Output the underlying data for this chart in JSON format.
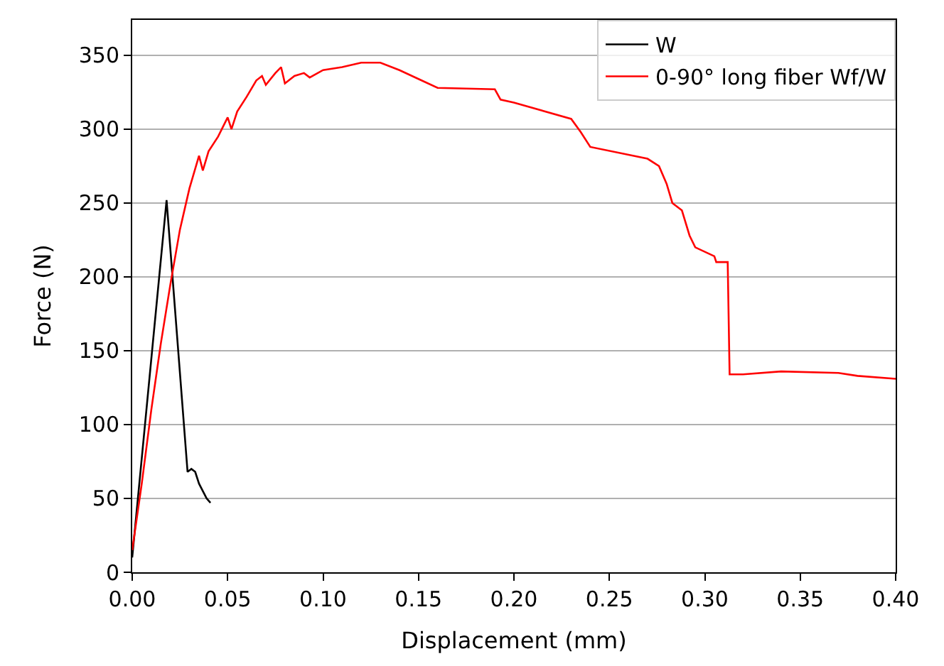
{
  "chart_data": {
    "type": "line",
    "xlabel": "Displacement (mm)",
    "ylabel": "Force (N)",
    "xlim": [
      0,
      0.4
    ],
    "xticks": [
      {
        "value": 0,
        "label": "0.00"
      },
      0.05,
      {
        "value": 0.1,
        "label": "0.10"
      },
      0.15,
      {
        "value": 0.2,
        "label": "0.20"
      },
      0.25,
      {
        "value": 0.3,
        "label": "0.30"
      },
      0.35,
      {
        "value": 0.4,
        "label": "0.40"
      }
    ],
    "ylim": [
      0,
      374
    ],
    "yticks": [
      0,
      50,
      100,
      150,
      200,
      250,
      300,
      350
    ],
    "grid": "y",
    "legend": "top right",
    "series": [
      {
        "name": "W",
        "color": "#000000",
        "x": [
          0,
          0.018,
          0.029,
          0.031,
          0.033,
          0.035,
          0.037,
          0.039,
          0.041
        ],
        "values": [
          10,
          252,
          68,
          70,
          68,
          60,
          55,
          50,
          47
        ]
      },
      {
        "name": "0-90° long fiber Wf/W",
        "color": "#ff0000",
        "x": [
          0,
          0.005,
          0.01,
          0.015,
          0.02,
          0.025,
          0.03,
          0.035,
          0.037,
          0.04,
          0.045,
          0.05,
          0.052,
          0.055,
          0.06,
          0.065,
          0.068,
          0.07,
          0.075,
          0.078,
          0.08,
          0.085,
          0.09,
          0.093,
          0.1,
          0.11,
          0.12,
          0.13,
          0.14,
          0.15,
          0.16,
          0.19,
          0.193,
          0.2,
          0.23,
          0.235,
          0.24,
          0.27,
          0.276,
          0.28,
          0.283,
          0.288,
          0.292,
          0.295,
          0.305,
          0.306,
          0.312,
          0.313,
          0.32,
          0.34,
          0.37,
          0.38,
          0.4
        ],
        "values": [
          15,
          60,
          110,
          155,
          195,
          232,
          260,
          282,
          272,
          285,
          295,
          308,
          300,
          312,
          322,
          333,
          336,
          330,
          338,
          342,
          331,
          336,
          338,
          335,
          340,
          342,
          345,
          345,
          340,
          334,
          328,
          327,
          320,
          318,
          307,
          298,
          288,
          280,
          275,
          263,
          250,
          245,
          228,
          220,
          214,
          210,
          210,
          134,
          134,
          136,
          135,
          133,
          131
        ]
      }
    ]
  }
}
